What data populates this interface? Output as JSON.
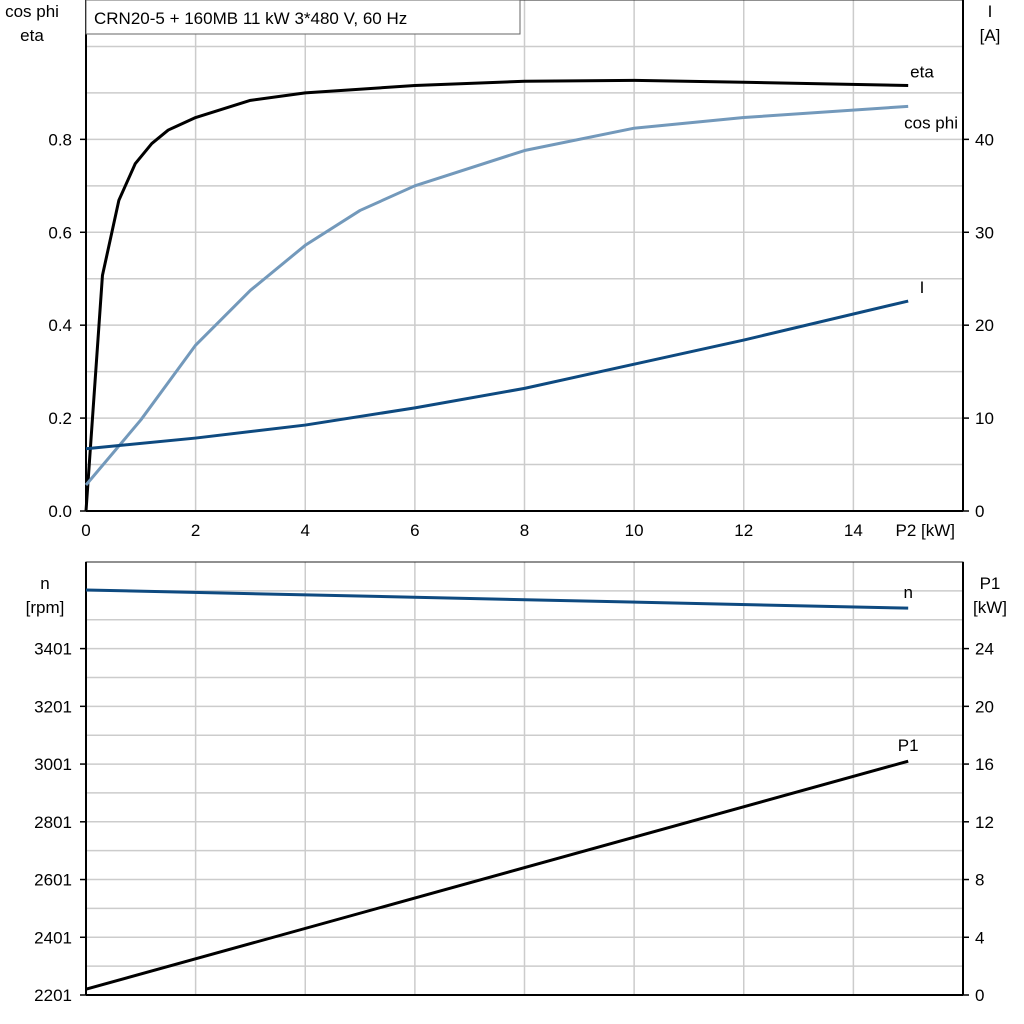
{
  "title": "CRN20-5 + 160MB   11 kW   3*480 V, 60 Hz",
  "colors": {
    "eta": "#000000",
    "cos_phi": "#7399bb",
    "I": "#0e4a80",
    "n": "#0e4a80",
    "P1": "#000000",
    "grid": "#cccccc"
  },
  "chart_data": [
    {
      "type": "line",
      "xlabel": "P2 [kW]",
      "xlim": [
        0,
        16
      ],
      "xticks": [
        0,
        2,
        4,
        6,
        8,
        10,
        12,
        14
      ],
      "ylabel_left": [
        "cos phi",
        "eta"
      ],
      "ylim_left": [
        0,
        1.1
      ],
      "yticks_left": [
        0.0,
        0.2,
        0.4,
        0.6,
        0.8
      ],
      "ytick_labels_left": [
        "0.0",
        "0.2",
        "0.4",
        "0.6",
        "0.8"
      ],
      "ylabel_right": [
        "I",
        "[A]"
      ],
      "ylim_right": [
        0,
        55
      ],
      "yticks_right": [
        0,
        10,
        20,
        30,
        40
      ],
      "grid": true,
      "series": [
        {
          "name": "eta",
          "axis": "left",
          "color": "#000000",
          "x": [
            0,
            0.3,
            0.6,
            0.9,
            1.2,
            1.5,
            2,
            3,
            4,
            6,
            8,
            10,
            12,
            15
          ],
          "y": [
            0,
            0.507,
            0.669,
            0.748,
            0.791,
            0.82,
            0.847,
            0.884,
            0.9,
            0.916,
            0.925,
            0.927,
            0.923,
            0.916
          ]
        },
        {
          "name": "cos phi",
          "axis": "left",
          "color": "#7399bb",
          "x": [
            0,
            1,
            2,
            3,
            4,
            5,
            6,
            8,
            10,
            12,
            15
          ],
          "y": [
            0.056,
            0.196,
            0.357,
            0.475,
            0.572,
            0.647,
            0.7,
            0.776,
            0.824,
            0.847,
            0.871
          ]
        },
        {
          "name": "I",
          "axis": "right",
          "color": "#0e4a80",
          "x": [
            0,
            2,
            4,
            6,
            8,
            10,
            12,
            15
          ],
          "y": [
            6.7,
            7.85,
            9.25,
            11.1,
            13.2,
            15.8,
            18.4,
            22.6
          ]
        }
      ]
    },
    {
      "type": "line",
      "xlim": [
        0,
        16
      ],
      "ylabel_left": [
        "n",
        "[rpm]"
      ],
      "ylim_left": [
        2201,
        3701
      ],
      "yticks_left": [
        2201,
        2401,
        2601,
        2801,
        3001,
        3201,
        3401
      ],
      "ylabel_right": [
        "P1",
        "[kW]"
      ],
      "ylim_right": [
        0,
        30
      ],
      "yticks_right": [
        0,
        4,
        8,
        12,
        16,
        20,
        24
      ],
      "grid": true,
      "series": [
        {
          "name": "n",
          "axis": "left",
          "color": "#0e4a80",
          "x": [
            0,
            15
          ],
          "y": [
            3604,
            3541
          ]
        },
        {
          "name": "P1",
          "axis": "right",
          "color": "#000000",
          "x": [
            0,
            15
          ],
          "y": [
            0.4,
            16.2
          ]
        }
      ]
    }
  ]
}
